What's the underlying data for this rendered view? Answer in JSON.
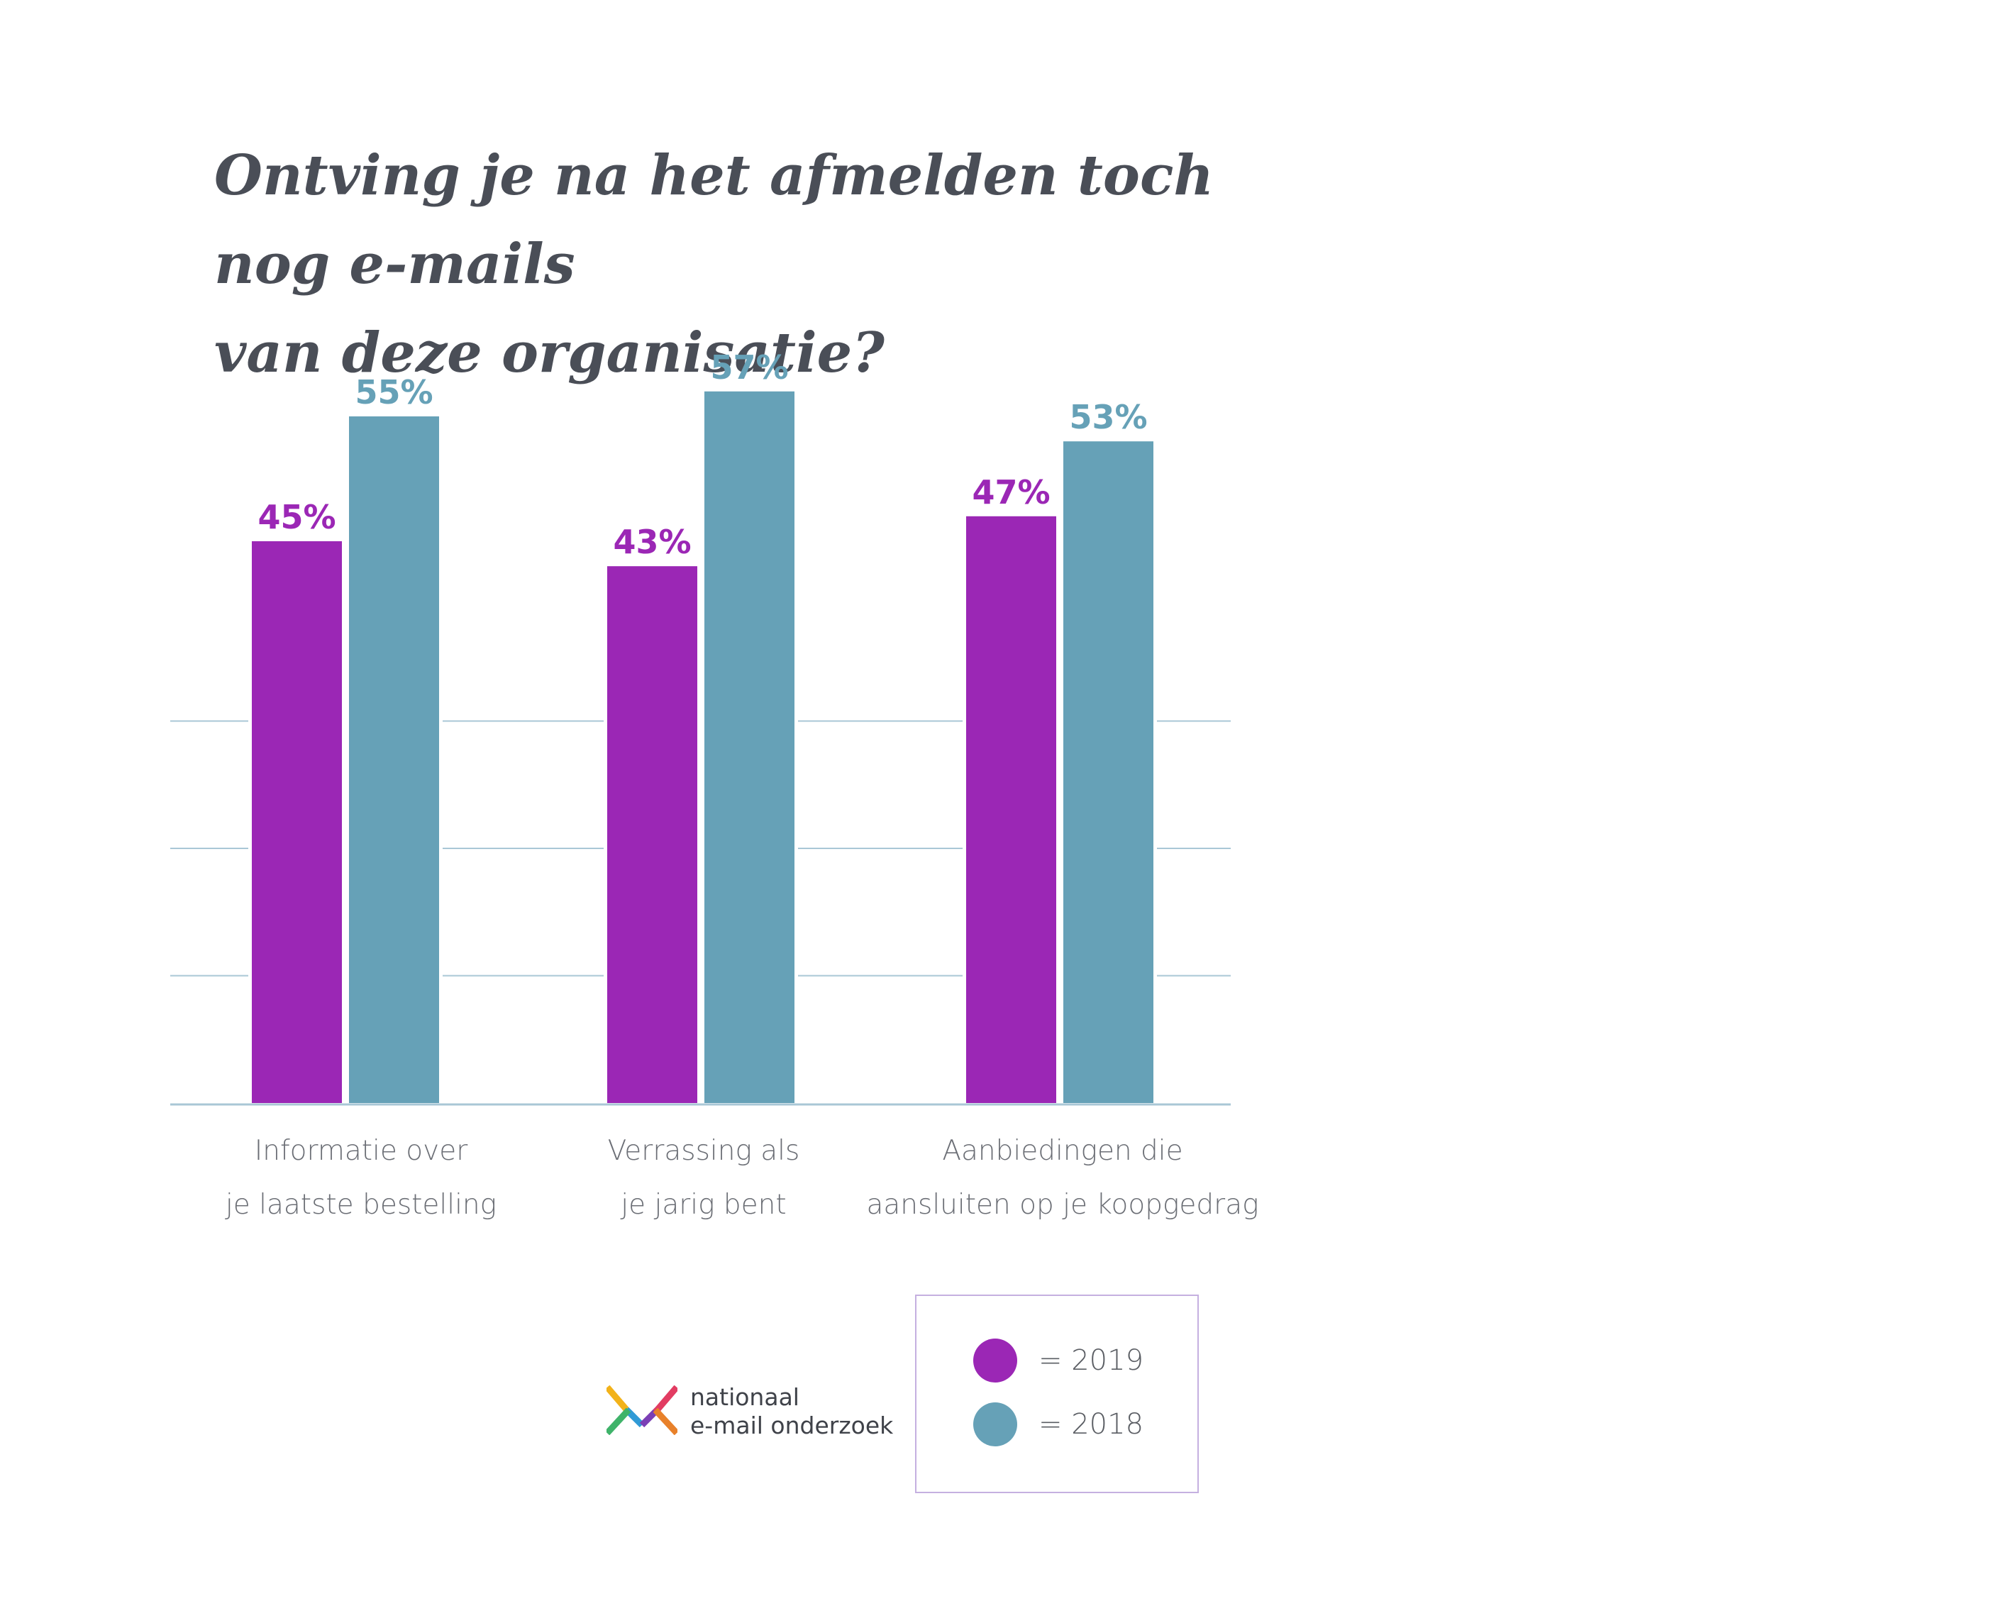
{
  "title": {
    "line1": "Ontving je na het afmelden toch nog e-mails",
    "line2": "van deze organisatie?"
  },
  "chart_data": {
    "type": "bar",
    "categories": [
      [
        "Informatie over",
        "je laatste bestelling"
      ],
      [
        "Verrassing als",
        "je jarig bent"
      ],
      [
        "Aanbiedingen die",
        "aansluiten op je koopgedrag"
      ]
    ],
    "series": [
      {
        "name": "2019",
        "values": [
          45,
          43,
          47
        ],
        "labels": [
          "45%",
          "43%",
          "47%"
        ],
        "color": "#9b27b5"
      },
      {
        "name": "2018",
        "values": [
          55,
          57,
          53
        ],
        "labels": [
          "55%",
          "57%",
          "53%"
        ],
        "color": "#66a1b7"
      }
    ],
    "ylim": [
      0,
      60
    ],
    "grid": true,
    "legend_placement": "bottom-right"
  },
  "legend": {
    "items": [
      {
        "label": "= 2019",
        "color": "#9b27b5"
      },
      {
        "label": "= 2018",
        "color": "#66a1b7"
      }
    ]
  },
  "logo": {
    "line1": "nationaal",
    "line2": "e-mail onderzoek",
    "icon": "envelope-logo-icon"
  }
}
